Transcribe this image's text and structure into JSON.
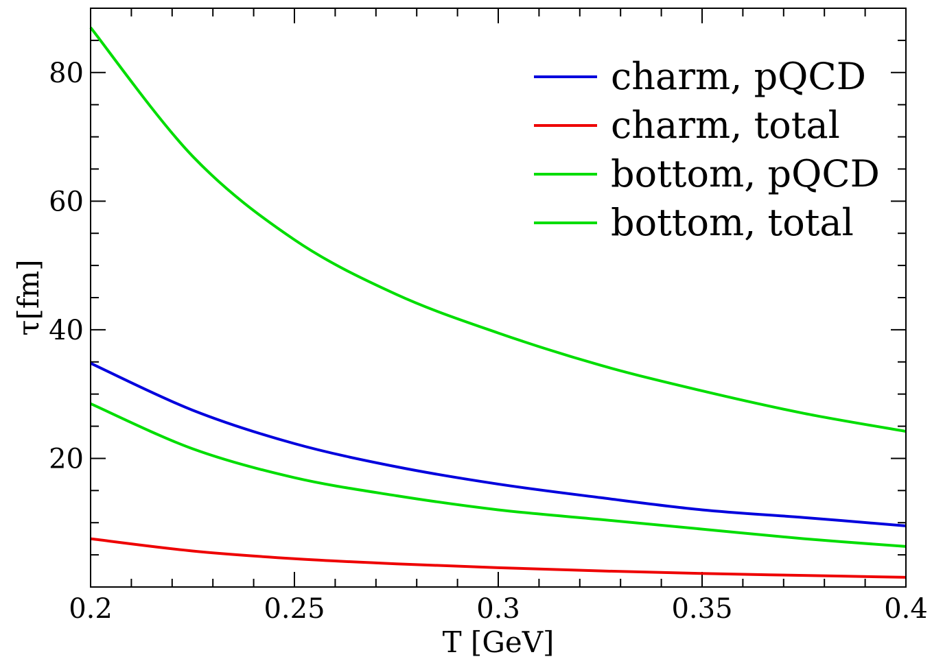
{
  "chart_data": {
    "type": "line",
    "title": "",
    "xlabel": "T [GeV]",
    "ylabel": "τ[fm]",
    "xlim": [
      0.2,
      0.4
    ],
    "ylim": [
      0,
      90
    ],
    "xticks": [
      0.2,
      0.25,
      0.3,
      0.35,
      0.4
    ],
    "xtick_labels": [
      "0.2",
      "0.25",
      "0.3",
      "0.35",
      "0.4"
    ],
    "yticks": [
      20,
      40,
      60,
      80
    ],
    "ytick_labels": [
      "20",
      "40",
      "60",
      "80"
    ],
    "grid": false,
    "legend_position": "top-right",
    "x": [
      0.2,
      0.225,
      0.25,
      0.275,
      0.3,
      0.325,
      0.35,
      0.375,
      0.4
    ],
    "series": [
      {
        "name": "charm, pQCD",
        "color": "#0000dd",
        "values": [
          34.8,
          27.5,
          22.3,
          18.7,
          16.0,
          13.9,
          12.0,
          10.8,
          9.5
        ]
      },
      {
        "name": "charm, total",
        "color": "#ee0000",
        "values": [
          7.5,
          5.6,
          4.4,
          3.6,
          3.0,
          2.5,
          2.1,
          1.8,
          1.5
        ]
      },
      {
        "name": "bottom, pQCD",
        "color": "#00dd00",
        "values": [
          28.5,
          21.5,
          17.0,
          14.2,
          12.0,
          10.5,
          9.0,
          7.5,
          6.3
        ]
      },
      {
        "name": "bottom, total",
        "color": "#00dd00",
        "values": [
          87.0,
          67.0,
          54.0,
          45.5,
          39.5,
          34.5,
          30.5,
          27.0,
          24.2
        ]
      }
    ]
  }
}
